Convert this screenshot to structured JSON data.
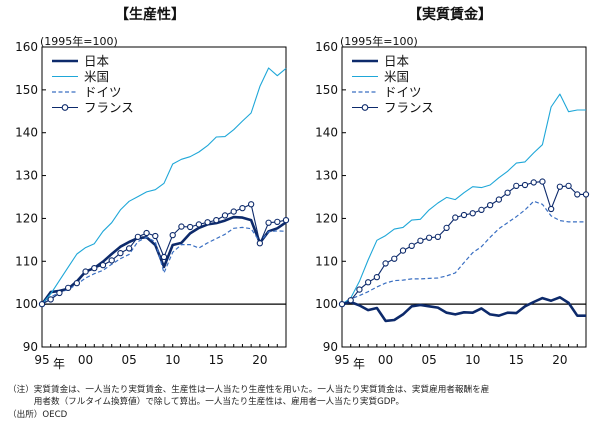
{
  "chart_data": [
    {
      "type": "line",
      "title": "【生産性】",
      "unit_label": "(1995年=100)",
      "xlabel": "年",
      "x": [
        1995,
        1996,
        1997,
        1998,
        1999,
        2000,
        2001,
        2002,
        2003,
        2004,
        2005,
        2006,
        2007,
        2008,
        2009,
        2010,
        2011,
        2012,
        2013,
        2014,
        2015,
        2016,
        2017,
        2018,
        2019,
        2020,
        2021,
        2022,
        2023
      ],
      "xticks": [
        {
          "x": 1995,
          "label": "95"
        },
        {
          "x": 2000,
          "label": "00"
        },
        {
          "x": 2005,
          "label": "05"
        },
        {
          "x": 2010,
          "label": "10"
        },
        {
          "x": 2015,
          "label": "15"
        },
        {
          "x": 2020,
          "label": "20"
        }
      ],
      "ylim": [
        90,
        160
      ],
      "yticks": [
        90,
        100,
        110,
        120,
        130,
        140,
        150,
        160
      ],
      "legend_position": "top-left",
      "series": [
        {
          "name": "日本",
          "color": "#0d2a6b",
          "style": "bold",
          "values": [
            100,
            102.8,
            103.1,
            103.6,
            105.3,
            107.6,
            108.4,
            109.9,
            111.7,
            113.4,
            114.5,
            115.4,
            115.6,
            113.8,
            108.7,
            113.8,
            114.3,
            116.5,
            117.8,
            118.6,
            118.9,
            119.5,
            120.3,
            120.2,
            119.6,
            114.3,
            117.0,
            117.7,
            119.1
          ]
        },
        {
          "name": "米国",
          "color": "#1fa7d8",
          "style": "thin",
          "values": [
            100,
            102.4,
            105.5,
            108.6,
            111.7,
            113.2,
            114.1,
            117.0,
            119.0,
            122.0,
            124.0,
            125.1,
            126.2,
            126.7,
            128.2,
            132.7,
            133.8,
            134.4,
            135.5,
            137.0,
            139.0,
            139.1,
            140.7,
            142.7,
            144.6,
            150.8,
            155.1,
            153.3,
            155.0
          ]
        },
        {
          "name": "ドイツ",
          "color": "#3a6fc2",
          "style": "dashed",
          "values": [
            100,
            101.6,
            102.8,
            103.4,
            104.6,
            106.1,
            107.1,
            107.9,
            109.3,
            110.6,
            111.6,
            114.6,
            115.6,
            114.6,
            107.3,
            112.1,
            113.9,
            113.9,
            113.1,
            114.3,
            115.3,
            116.3,
            117.7,
            117.9,
            117.6,
            114.5,
            116.9,
            117.1,
            117.0
          ]
        },
        {
          "name": "フランス",
          "color": "#0d2a6b",
          "style": "marker",
          "values": [
            100,
            101.1,
            102.6,
            103.8,
            104.9,
            107.6,
            108.4,
            109.1,
            110.2,
            111.9,
            113.0,
            115.7,
            116.6,
            115.9,
            111.0,
            116.1,
            118.1,
            118.0,
            118.6,
            119.1,
            119.6,
            120.7,
            121.6,
            122.4,
            123.3,
            114.2,
            119.0,
            119.2,
            119.6
          ]
        }
      ]
    },
    {
      "type": "line",
      "title": "【実質賃金】",
      "unit_label": "(1995年=100)",
      "xlabel": "年",
      "x": [
        1995,
        1996,
        1997,
        1998,
        1999,
        2000,
        2001,
        2002,
        2003,
        2004,
        2005,
        2006,
        2007,
        2008,
        2009,
        2010,
        2011,
        2012,
        2013,
        2014,
        2015,
        2016,
        2017,
        2018,
        2019,
        2020,
        2021,
        2022,
        2023
      ],
      "xticks": [
        {
          "x": 1995,
          "label": "95"
        },
        {
          "x": 2000,
          "label": "00"
        },
        {
          "x": 2005,
          "label": "05"
        },
        {
          "x": 2010,
          "label": "10"
        },
        {
          "x": 2015,
          "label": "15"
        },
        {
          "x": 2020,
          "label": "20"
        }
      ],
      "ylim": [
        90,
        160
      ],
      "yticks": [
        90,
        100,
        110,
        120,
        130,
        140,
        150,
        160
      ],
      "legend_position": "top-left",
      "series": [
        {
          "name": "日本",
          "color": "#0d2a6b",
          "style": "bold",
          "values": [
            100,
            100.5,
            99.7,
            98.6,
            99.1,
            96.1,
            96.3,
            97.6,
            99.5,
            99.8,
            99.5,
            99.2,
            98.0,
            97.6,
            98.1,
            98.0,
            99.0,
            97.6,
            97.3,
            98.0,
            97.9,
            99.5,
            100.5,
            101.4,
            100.8,
            101.6,
            100.3,
            97.3,
            97.3
          ]
        },
        {
          "name": "米国",
          "color": "#1fa7d8",
          "style": "thin",
          "values": [
            100,
            101.4,
            105.3,
            110.3,
            114.9,
            116.0,
            117.5,
            117.9,
            119.6,
            119.8,
            122.0,
            123.6,
            124.9,
            124.4,
            126.0,
            127.4,
            127.2,
            127.8,
            129.5,
            131.0,
            132.9,
            133.2,
            135.3,
            137.2,
            146.0,
            149.0,
            144.9,
            145.3,
            145.3
          ]
        },
        {
          "name": "ドイツ",
          "color": "#3a6fc2",
          "style": "dashed",
          "values": [
            100,
            101.2,
            102.0,
            102.9,
            104.0,
            104.9,
            105.5,
            105.6,
            105.9,
            105.9,
            106.0,
            106.1,
            106.6,
            107.3,
            109.7,
            112.0,
            113.4,
            115.6,
            117.6,
            119.0,
            120.4,
            122.0,
            124.0,
            123.3,
            120.6,
            119.5,
            119.2,
            119.2,
            119.2
          ]
        },
        {
          "name": "フランス",
          "color": "#0d2a6b",
          "style": "marker",
          "values": [
            100,
            100.9,
            103.4,
            105.1,
            106.3,
            109.5,
            110.6,
            112.5,
            113.6,
            114.8,
            115.5,
            115.7,
            117.8,
            120.2,
            120.8,
            121.2,
            122.0,
            123.1,
            124.4,
            126.0,
            127.6,
            127.8,
            128.4,
            128.6,
            122.2,
            127.4,
            127.6,
            125.6,
            125.6
          ]
        }
      ]
    }
  ],
  "notes": {
    "line1": "（注）実質賃金は、一人当たり実質賃金、生産性は一人当たり生産性を用いた。一人当たり実質賃金は、実質雇用者報酬を雇",
    "line2": "　　　用者数（フルタイム換算値）で除して算出。一人当たり生産性は、雇用者一人当たり実質GDP。",
    "line3": "（出所）OECD"
  }
}
